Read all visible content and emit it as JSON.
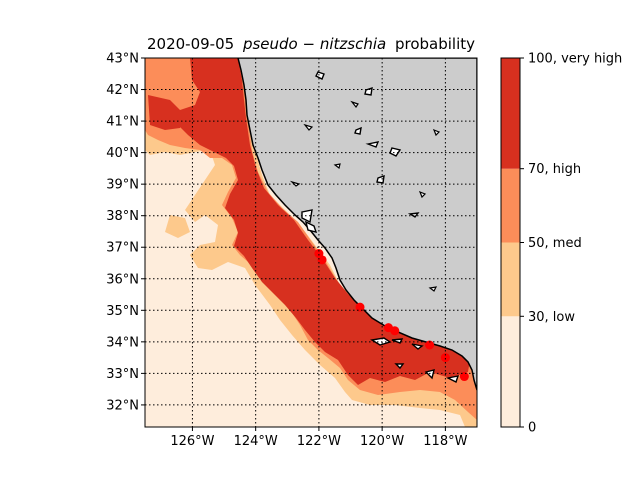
{
  "chart_data": {
    "type": "heatmap",
    "title_prefix": "2020-09-05",
    "title_italic": "pseudo − nitzschia",
    "title_suffix": "probability",
    "x_ticks": [
      "126°W",
      "124°W",
      "122°W",
      "120°W",
      "118°W"
    ],
    "x_tick_values": [
      -126,
      -124,
      -122,
      -120,
      -118
    ],
    "y_ticks": [
      "32°N",
      "33°N",
      "34°N",
      "35°N",
      "36°N",
      "37°N",
      "38°N",
      "39°N",
      "40°N",
      "41°N",
      "42°N",
      "43°N"
    ],
    "y_tick_values": [
      32,
      33,
      34,
      35,
      36,
      37,
      38,
      39,
      40,
      41,
      42,
      43
    ],
    "xlim": [
      -127.5,
      -117.0
    ],
    "ylim": [
      31.3,
      43.0
    ],
    "grid": true,
    "colorbar": {
      "labels": [
        "0",
        "30, low",
        "50, med",
        "70, high",
        "100, very high"
      ],
      "bounds": [
        0,
        30,
        50,
        70,
        100
      ],
      "colors": [
        "#feeddc",
        "#fdc98c",
        "#fc8d59",
        "#d7301f"
      ]
    },
    "land_color": "#cccccc",
    "observation_points": [
      {
        "lon": -122.0,
        "lat": 36.8
      },
      {
        "lon": -121.9,
        "lat": 36.6
      },
      {
        "lon": -120.7,
        "lat": 35.1
      },
      {
        "lon": -119.8,
        "lat": 34.45
      },
      {
        "lon": -119.6,
        "lat": 34.35
      },
      {
        "lon": -118.5,
        "lat": 33.9
      },
      {
        "lon": -118.0,
        "lat": 33.5
      },
      {
        "lon": -117.4,
        "lat": 32.9
      }
    ],
    "point_color": "#ff0000"
  }
}
